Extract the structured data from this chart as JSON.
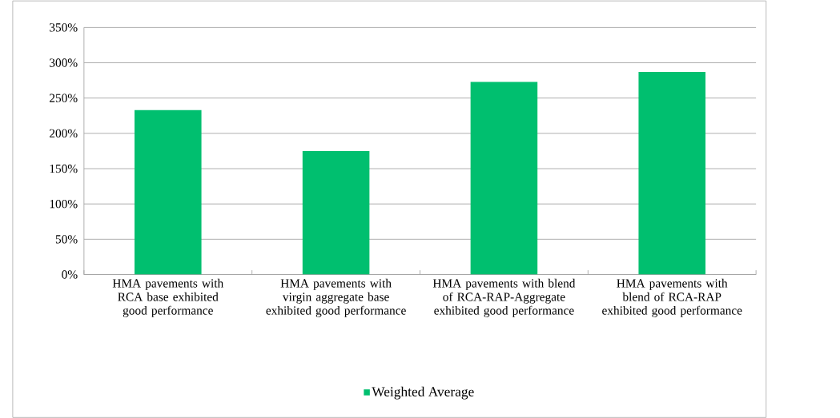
{
  "chart_data": {
    "type": "bar",
    "categories": [
      "HMA pavements with RCA base exhibited good performance",
      "HMA pavements with virgin aggregate base exhibited good performance",
      "HMA pavements with blend of RCA-RAP-Aggregate  exhibited good performance",
      "HMA pavements with blend of RCA-RAP exhibited good performance"
    ],
    "series": [
      {
        "name": "Weighted Average",
        "color": "#00bf6f",
        "values": [
          233,
          175,
          273,
          287
        ]
      }
    ],
    "ylim": [
      0,
      350
    ],
    "yticks": [
      {
        "value": 0,
        "label": "0%"
      },
      {
        "value": 50,
        "label": "50%"
      },
      {
        "value": 100,
        "label": "100%"
      },
      {
        "value": 150,
        "label": "150%"
      },
      {
        "value": 200,
        "label": "200%"
      },
      {
        "value": 250,
        "label": "250%"
      },
      {
        "value": 300,
        "label": "300%"
      },
      {
        "value": 350,
        "label": "350%"
      }
    ],
    "grid": "y",
    "legend": "bottom"
  }
}
